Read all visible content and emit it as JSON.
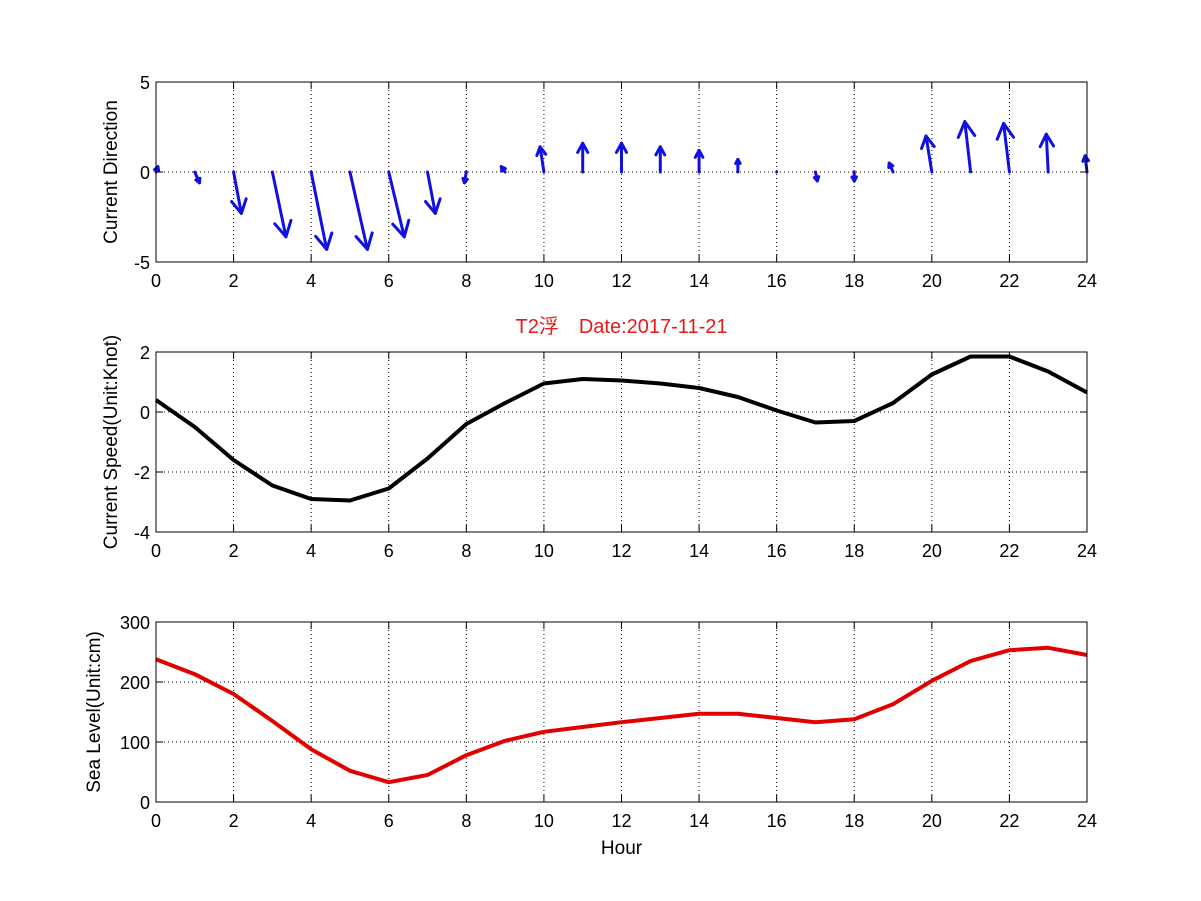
{
  "title": "T2浮　Date:2017-11-21",
  "colors": {
    "title": "#e41a1a",
    "quiver": "#1010e0",
    "speed": "#000000",
    "sea_level": "#e00000",
    "grid": "#000000",
    "axes": "#000000"
  },
  "chart_data": [
    {
      "type": "quiver",
      "title": "",
      "xlabel": "",
      "ylabel": "Current Direction",
      "xlim": [
        0,
        24
      ],
      "ylim": [
        -5,
        5
      ],
      "xticks": [
        0,
        2,
        4,
        6,
        8,
        10,
        12,
        14,
        16,
        18,
        20,
        22,
        24
      ],
      "yticks": [
        -5,
        0,
        5
      ],
      "grid": true,
      "x": [
        0,
        1,
        2,
        3,
        4,
        5,
        6,
        7,
        8,
        9,
        10,
        11,
        12,
        13,
        14,
        15,
        16,
        17,
        18,
        19,
        20,
        21,
        22,
        23,
        24
      ],
      "u": [
        0.05,
        0.12,
        0.2,
        0.35,
        0.4,
        0.45,
        0.4,
        0.2,
        -0.05,
        -0.1,
        -0.1,
        0.0,
        0.0,
        0.0,
        0.0,
        0.0,
        0.0,
        0.05,
        0.0,
        -0.1,
        -0.15,
        -0.15,
        -0.15,
        -0.05,
        -0.05
      ],
      "v": [
        0.3,
        -0.6,
        -2.3,
        -3.6,
        -4.3,
        -4.3,
        -3.6,
        -2.3,
        -0.6,
        0.3,
        1.4,
        1.6,
        1.6,
        1.4,
        1.2,
        0.7,
        0.0,
        -0.5,
        -0.5,
        0.5,
        2.0,
        2.8,
        2.7,
        2.1,
        0.9
      ]
    },
    {
      "type": "line",
      "title": "",
      "xlabel": "",
      "ylabel": "Current Speed(Unit:Knot)",
      "xlim": [
        0,
        24
      ],
      "ylim": [
        -4,
        2
      ],
      "xticks": [
        0,
        2,
        4,
        6,
        8,
        10,
        12,
        14,
        16,
        18,
        20,
        22,
        24
      ],
      "yticks": [
        -4,
        -2,
        0,
        2
      ],
      "grid": true,
      "x": [
        0,
        1,
        2,
        3,
        4,
        5,
        6,
        7,
        8,
        9,
        10,
        11,
        12,
        13,
        14,
        15,
        16,
        17,
        18,
        19,
        20,
        21,
        22,
        23,
        24
      ],
      "series": [
        {
          "values": [
            0.4,
            -0.5,
            -1.6,
            -2.45,
            -2.9,
            -2.95,
            -2.55,
            -1.55,
            -0.4,
            0.3,
            0.95,
            1.1,
            1.05,
            0.95,
            0.8,
            0.5,
            0.05,
            -0.35,
            -0.3,
            0.3,
            1.25,
            1.85,
            1.85,
            1.35,
            0.65
          ]
        }
      ]
    },
    {
      "type": "line",
      "title": "",
      "xlabel": "Hour",
      "ylabel": "Sea Level(Unit:cm)",
      "xlim": [
        0,
        24
      ],
      "ylim": [
        0,
        300
      ],
      "xticks": [
        0,
        2,
        4,
        6,
        8,
        10,
        12,
        14,
        16,
        18,
        20,
        22,
        24
      ],
      "yticks": [
        0,
        100,
        200,
        300
      ],
      "grid": true,
      "x": [
        0,
        1,
        2,
        3,
        4,
        5,
        6,
        7,
        8,
        9,
        10,
        11,
        12,
        13,
        14,
        15,
        16,
        17,
        18,
        19,
        20,
        21,
        22,
        23,
        24
      ],
      "series": [
        {
          "values": [
            238,
            213,
            180,
            135,
            88,
            52,
            33,
            45,
            78,
            102,
            117,
            125,
            133,
            140,
            147,
            147,
            140,
            133,
            138,
            163,
            202,
            235,
            253,
            257,
            245
          ]
        }
      ]
    }
  ]
}
